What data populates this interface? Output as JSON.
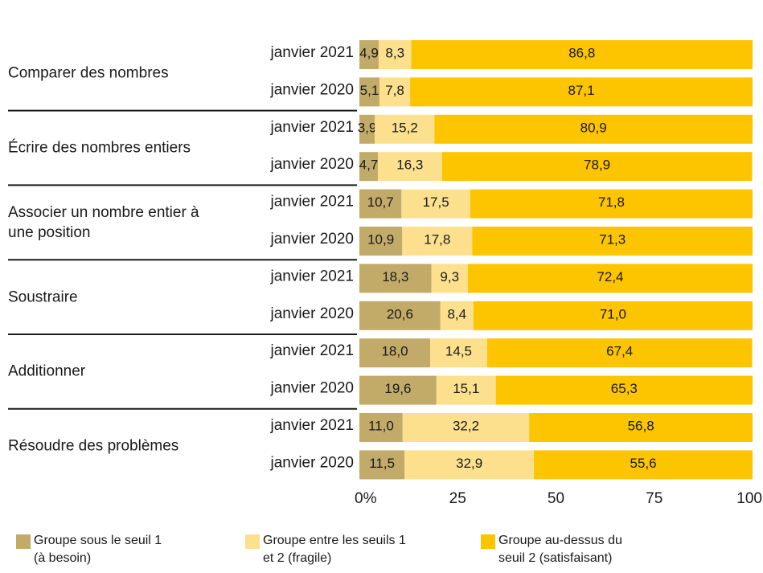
{
  "chart_data": {
    "type": "stacked-barh",
    "groups": [
      "Comparer des nombres",
      "Écrire des nombres entiers",
      "Associer un nombre entier à une position",
      "Soustraire",
      "Additionner",
      "Résoudre des problèmes"
    ],
    "categories": [
      "janvier 2021",
      "janvier 2020",
      "janvier 2021",
      "janvier 2020",
      "janvier 2021",
      "janvier 2020",
      "janvier 2021",
      "janvier 2020",
      "janvier 2021",
      "janvier 2020",
      "janvier 2021",
      "janvier 2020"
    ],
    "series": [
      {
        "name": "Groupe sous le seuil 1 (à besoin)",
        "color": "#c2aa68",
        "values": [
          4.9,
          5.1,
          3.9,
          4.7,
          10.7,
          10.9,
          18.3,
          20.6,
          18.0,
          19.6,
          11.0,
          11.5
        ],
        "value_labels": [
          "4,9",
          "5,1",
          "3,9",
          "4,7",
          "10,7",
          "10,9",
          "18,3",
          "20,6",
          "18,0",
          "19,6",
          "11,0",
          "11,5"
        ]
      },
      {
        "name": "Groupe entre les seuils 1 et 2 (fragile)",
        "color": "#fde08e",
        "values": [
          8.3,
          7.8,
          15.2,
          16.3,
          17.5,
          17.8,
          9.3,
          8.4,
          14.5,
          15.1,
          32.2,
          32.9
        ],
        "value_labels": [
          "8,3",
          "7,8",
          "15,2",
          "16,3",
          "17,5",
          "17,8",
          "9,3",
          "8,4",
          "14,5",
          "15,1",
          "32,2",
          "32,9"
        ]
      },
      {
        "name": "Groupe au-dessus du seuil 2 (satisfaisant)",
        "color": "#fdc400",
        "values": [
          86.8,
          87.1,
          80.9,
          78.9,
          71.8,
          71.3,
          72.4,
          71.0,
          67.4,
          65.3,
          56.8,
          55.6
        ],
        "value_labels": [
          "86,8",
          "87,1",
          "80,9",
          "78,9",
          "71,8",
          "71,3",
          "72,4",
          "71,0",
          "67,4",
          "65,3",
          "56,8",
          "55,6"
        ]
      }
    ],
    "xlim": [
      0,
      100
    ],
    "xticks": [
      {
        "value": 0,
        "label": "0%"
      },
      25,
      50,
      75,
      100
    ]
  }
}
